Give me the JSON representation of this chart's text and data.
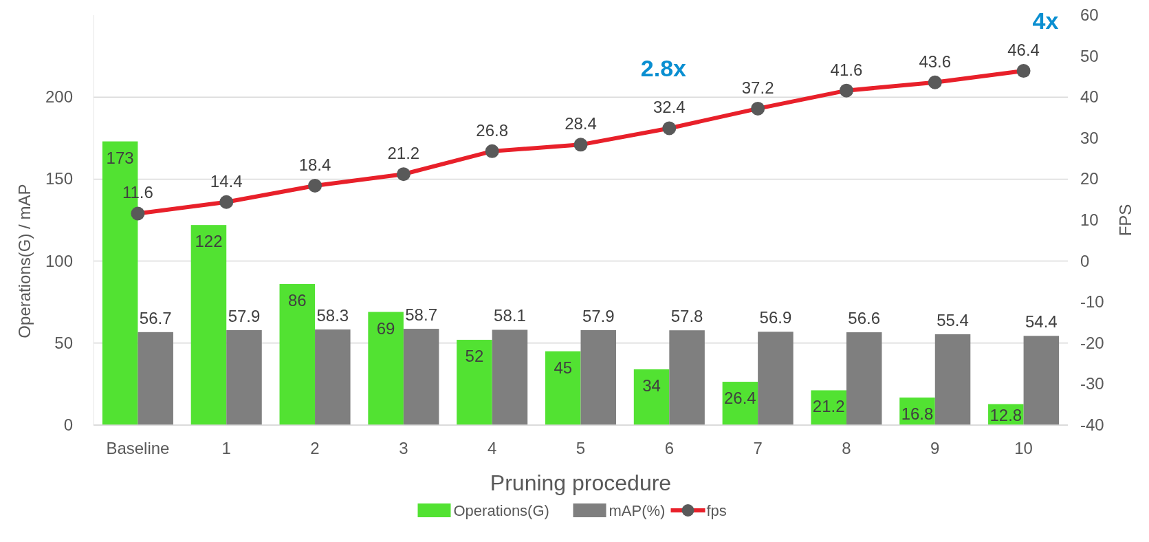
{
  "chart_data": {
    "type": "bar",
    "xlabel": "Pruning procedure",
    "ylabel": "Operations(G) / mAP",
    "y2label": "FPS",
    "categories": [
      "Baseline",
      "1",
      "2",
      "3",
      "4",
      "5",
      "6",
      "7",
      "8",
      "9",
      "10"
    ],
    "series": [
      {
        "name": "Operations(G)",
        "color": "#52e232",
        "values": [
          173,
          122,
          86,
          69,
          52,
          45,
          34,
          26.4,
          21.2,
          16.8,
          12.8
        ]
      },
      {
        "name": "mAP(%)",
        "color": "#7f7f7f",
        "values": [
          56.7,
          57.9,
          58.3,
          58.7,
          58.1,
          57.9,
          57.8,
          56.9,
          56.6,
          55.4,
          54.4
        ]
      },
      {
        "name": "fps",
        "type": "line",
        "axis": "y2",
        "color": "#e8202a",
        "marker": "circle",
        "values": [
          11.6,
          14.4,
          18.4,
          21.2,
          26.8,
          28.4,
          32.4,
          37.2,
          41.6,
          43.6,
          46.4
        ]
      }
    ],
    "ylim": [
      0,
      250
    ],
    "yticks": [
      0,
      50,
      100,
      150,
      200
    ],
    "y2lim": [
      -40,
      60
    ],
    "y2ticks": [
      -40,
      -30,
      -20,
      -10,
      0,
      10,
      20,
      30,
      40,
      50,
      60
    ],
    "grid": "y",
    "legend": "bottom",
    "data_labels": true,
    "annotations": [
      "2.8x",
      "4x"
    ]
  }
}
